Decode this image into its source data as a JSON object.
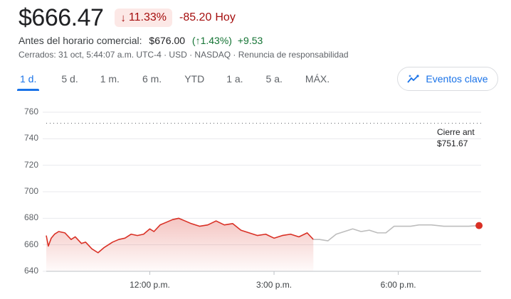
{
  "quote": {
    "price": "$666.47",
    "change_pct": "11.33%",
    "change_abs": "-85.20",
    "change_period": "Hoy"
  },
  "premarket": {
    "label": "Antes del horario comercial:",
    "price": "$676.00",
    "pct": "1.43%",
    "change": "+9.53"
  },
  "status_line": "Cerrados: 31 oct, 5:44:07 a.m. UTC-4 · USD · NASDAQ · Renuncia de responsabilidad",
  "tabs": [
    "1 d.",
    "5 d.",
    "1 m.",
    "6 m.",
    "YTD",
    "1 a.",
    "5 a.",
    "MÁX."
  ],
  "active_tab": "1 d.",
  "events_button": "Eventos clave",
  "colors": {
    "down": "#d93025",
    "up": "#137333",
    "accent": "#1a73e8",
    "afterhours": "#bdbdbd"
  },
  "chart_data": {
    "type": "line",
    "y_ticks": [
      "760",
      "740",
      "720",
      "700",
      "680",
      "660",
      "640"
    ],
    "ylim": [
      640,
      760
    ],
    "x_ticks": [
      "12:00 p.m.",
      "3:00 p.m.",
      "6:00 p.m."
    ],
    "x_tick_hours": [
      12,
      15,
      18
    ],
    "x_range_hours": [
      9.5,
      20
    ],
    "previous_close": {
      "label": "Cierre ant",
      "value": "$751.67",
      "y": 751.67
    },
    "series": [
      {
        "session": "regular",
        "hours": [
          9.5,
          9.55,
          9.62,
          9.7,
          9.8,
          9.95,
          10.1,
          10.2,
          10.35,
          10.45,
          10.6,
          10.75,
          10.9,
          11.0,
          11.1,
          11.25,
          11.4,
          11.55,
          11.7,
          11.85,
          12.0,
          12.1,
          12.25,
          12.4,
          12.55,
          12.7,
          12.85,
          13.0,
          13.2,
          13.4,
          13.6,
          13.8,
          14.0,
          14.2,
          14.4,
          14.6,
          14.8,
          15.0,
          15.2,
          15.4,
          15.6,
          15.8,
          15.95
        ],
        "values": [
          667,
          659,
          665,
          668,
          670,
          669,
          664,
          666,
          661,
          662,
          657,
          654,
          658,
          660,
          662,
          664,
          665,
          668,
          667,
          668,
          672,
          670,
          675,
          677,
          679,
          680,
          678,
          676,
          674,
          675,
          678,
          675,
          676,
          671,
          669,
          667,
          668,
          665,
          667,
          668,
          666,
          669,
          664
        ]
      },
      {
        "session": "after_hours",
        "hours": [
          15.95,
          16.1,
          16.3,
          16.5,
          16.7,
          16.9,
          17.1,
          17.3,
          17.5,
          17.7,
          17.9,
          18.1,
          18.3,
          18.5,
          18.8,
          19.1,
          19.4,
          19.7,
          19.95
        ],
        "values": [
          664,
          664,
          663,
          668,
          670,
          672,
          670,
          671,
          669,
          669,
          674,
          674,
          674,
          675,
          675,
          674,
          674,
          674,
          674.5
        ]
      }
    ],
    "last_point": {
      "hour": 19.95,
      "value": 674.5
    }
  }
}
